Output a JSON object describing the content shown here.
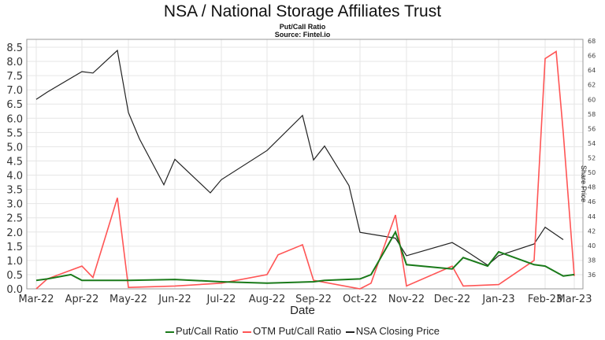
{
  "header": {
    "title": "NSA / National Storage Affiliates Trust",
    "subtitle": "Put/Call Ratio",
    "source": "Source: Fintel.io"
  },
  "axes": {
    "xlabel": "Date",
    "ylabel_right": "Share Price",
    "left_ticks": [
      "0.0",
      "0.5",
      "1.0",
      "1.5",
      "2.0",
      "2.5",
      "3.0",
      "3.5",
      "4.0",
      "4.5",
      "5.0",
      "5.5",
      "6.0",
      "6.5",
      "7.0",
      "7.5",
      "8.0",
      "8.5"
    ],
    "right_ticks": [
      "36",
      "38",
      "40",
      "42",
      "44",
      "46",
      "48",
      "50",
      "52",
      "54",
      "56",
      "58",
      "60",
      "62",
      "64",
      "66",
      "68"
    ],
    "x_ticks": [
      "Mar-22",
      "Apr-22",
      "May-22",
      "Jun-22",
      "Jul-22",
      "Aug-22",
      "Sep-22",
      "Oct-22",
      "Nov-22",
      "Dec-22",
      "Jan-23",
      "Feb-23",
      "Mar-23"
    ]
  },
  "legend": [
    {
      "label": "Put/Call Ratio",
      "color": "#1a7a1a"
    },
    {
      "label": "OTM Put/Call Ratio",
      "color": "#ff5555"
    },
    {
      "label": "NSA Closing Price",
      "color": "#222222"
    }
  ],
  "chart_data": {
    "type": "line",
    "title": "NSA / National Storage Affiliates Trust",
    "subtitle": "Put/Call Ratio",
    "source": "Source: Fintel.io",
    "xlabel": "Date",
    "ylabel": "",
    "ylabel_right": "Share Price",
    "ylim": [
      0,
      8.5
    ],
    "ylim_right": [
      35,
      68
    ],
    "grid": true,
    "legend_position": "bottom",
    "x_ticks": [
      "Mar-22",
      "Apr-22",
      "May-22",
      "Jun-22",
      "Jul-22",
      "Aug-22",
      "Sep-22",
      "Oct-22",
      "Nov-22",
      "Dec-22",
      "Jan-23",
      "Feb-23",
      "Mar-23"
    ],
    "series": [
      {
        "name": "Put/Call Ratio",
        "axis": "left",
        "color": "#1a7a1a",
        "points": [
          [
            "Mar-22",
            0.3
          ],
          [
            "Mar-22+",
            0.35
          ],
          [
            "Apr-22-",
            0.5
          ],
          [
            "Apr-22",
            0.3
          ],
          [
            "May-22",
            0.3
          ],
          [
            "Jun-22",
            0.33
          ],
          [
            "Jul-22",
            0.25
          ],
          [
            "Aug-22",
            0.2
          ],
          [
            "Sep-22",
            0.25
          ],
          [
            "Sep-22+",
            0.3
          ],
          [
            "Oct-22",
            0.35
          ],
          [
            "Oct-22+",
            0.5
          ],
          [
            "Nov-22-",
            2.0
          ],
          [
            "Nov-22",
            0.85
          ],
          [
            "Dec-22",
            0.7
          ],
          [
            "Dec-22+",
            1.1
          ],
          [
            "Jan-23-",
            0.8
          ],
          [
            "Jan-23",
            1.3
          ],
          [
            "Feb-23-",
            0.85
          ],
          [
            "Feb-23",
            0.8
          ],
          [
            "Mar-23-",
            0.45
          ],
          [
            "Mar-23",
            0.5
          ]
        ]
      },
      {
        "name": "OTM Put/Call Ratio",
        "axis": "left",
        "color": "#ff5555",
        "points": [
          [
            "Mar-22",
            0.0
          ],
          [
            "Mar-22+",
            0.35
          ],
          [
            "Apr-22",
            0.8
          ],
          [
            "Apr-22+",
            0.4
          ],
          [
            "May-22-",
            3.2
          ],
          [
            "May-22",
            0.05
          ],
          [
            "Jun-22",
            0.1
          ],
          [
            "Jul-22",
            0.2
          ],
          [
            "Aug-22",
            0.5
          ],
          [
            "Aug-22+",
            1.2
          ],
          [
            "Sep-22-",
            1.55
          ],
          [
            "Sep-22",
            0.3
          ],
          [
            "Oct-22",
            0.0
          ],
          [
            "Oct-22+",
            0.2
          ],
          [
            "Nov-22-",
            2.6
          ],
          [
            "Nov-22",
            0.1
          ],
          [
            "Dec-22",
            0.8
          ],
          [
            "Dec-22+",
            0.1
          ],
          [
            "Jan-23",
            0.15
          ],
          [
            "Feb-23-",
            1.0
          ],
          [
            "Feb-23",
            8.1
          ],
          [
            "Feb-23+",
            8.35
          ],
          [
            "Mar-23-",
            5.5
          ],
          [
            "Mar-23",
            0.45
          ]
        ]
      },
      {
        "name": "NSA Closing Price",
        "axis": "right",
        "color": "#222222",
        "points": [
          [
            "Mar-22",
            60.0
          ],
          [
            "Mar-22+",
            61.0
          ],
          [
            "Apr-22",
            63.8
          ],
          [
            "Apr-22+",
            63.6
          ],
          [
            "May-22-",
            66.7
          ],
          [
            "May-22",
            58.2
          ],
          [
            "May-22+",
            54.6
          ],
          [
            "Jun-22-",
            48.3
          ],
          [
            "Jun-22",
            51.8
          ],
          [
            "Jul-22-",
            47.2
          ],
          [
            "Jul-22",
            49.0
          ],
          [
            "Aug-22",
            53.0
          ],
          [
            "Sep-22-",
            57.8
          ],
          [
            "Sep-22",
            51.7
          ],
          [
            "Sep-22+",
            53.6
          ],
          [
            "Oct-22-",
            48.2
          ],
          [
            "Oct-22",
            41.8
          ],
          [
            "Nov-22-",
            41.0
          ],
          [
            "Nov-22",
            38.6
          ],
          [
            "Dec-22",
            40.4
          ],
          [
            "Dec-22+",
            39.5
          ],
          [
            "Jan-23-",
            37.3
          ],
          [
            "Jan-23",
            38.6
          ],
          [
            "Feb-23-",
            40.2
          ],
          [
            "Feb-23",
            42.5
          ],
          [
            "Mar-23-",
            40.8
          ]
        ]
      }
    ]
  }
}
